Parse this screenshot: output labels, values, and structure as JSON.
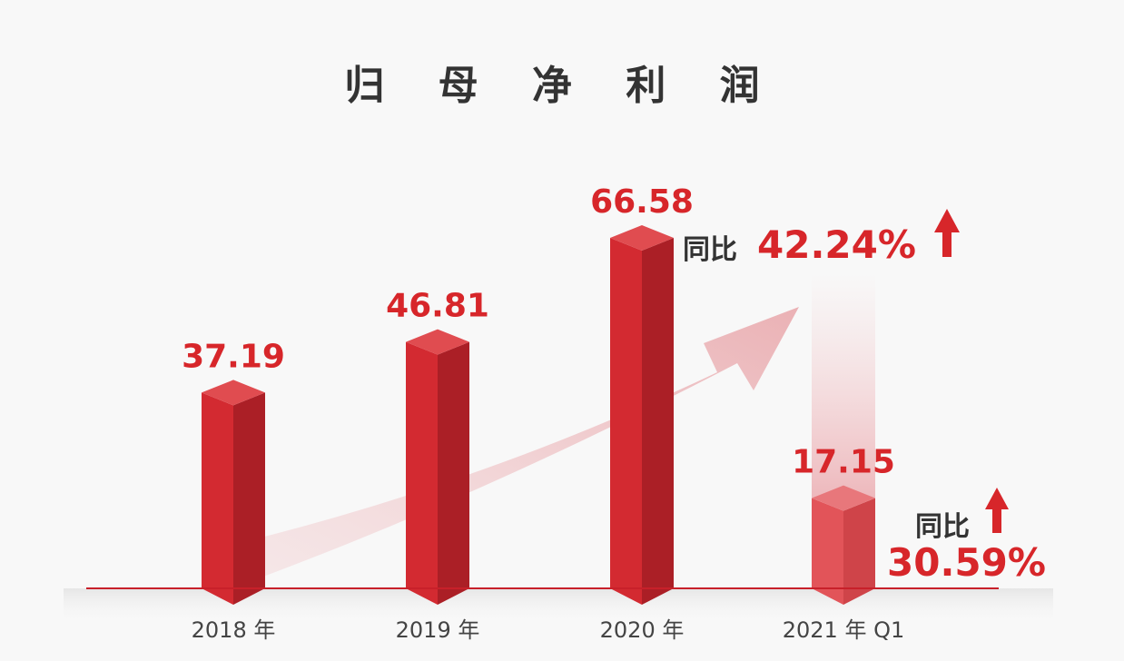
{
  "title": "归 母 净 利 润",
  "chart_data": {
    "type": "bar",
    "title": "归 母 净 利 润",
    "categories": [
      "2018 年",
      "2019 年",
      "2020 年",
      "2021 年 Q1"
    ],
    "values": [
      37.19,
      46.81,
      66.58,
      17.15
    ],
    "value_labels": [
      "37.19",
      "46.81",
      "66.58",
      "17.15"
    ],
    "xlabel": "",
    "ylabel": "",
    "ylim": [
      0,
      70
    ],
    "grid": false,
    "colors": {
      "bar": "#d32a31",
      "bar_dark": "#ab1f26",
      "bar_top": "#e04c50",
      "bar_q1": "#e25459",
      "accent": "#d7262a",
      "baseline": "#c8202a"
    },
    "annotations": [
      {
        "label": "同比",
        "value": "42.24%",
        "arrow": "up"
      },
      {
        "label": "同比",
        "value": "30.59%",
        "arrow": "up"
      }
    ]
  }
}
